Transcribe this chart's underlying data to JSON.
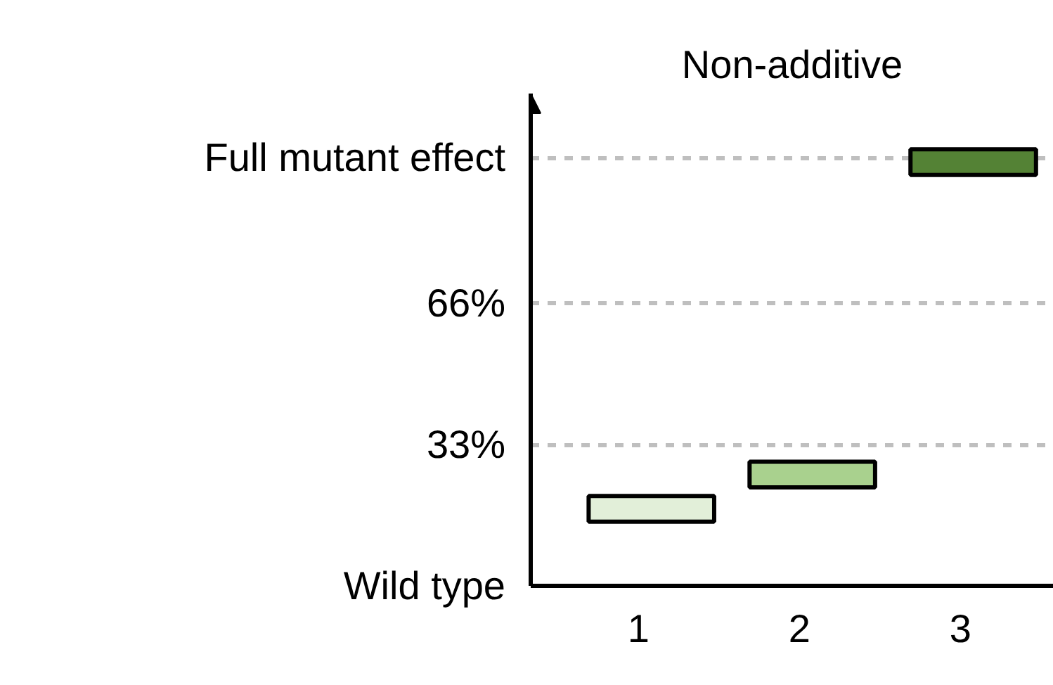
{
  "chart_data": {
    "type": "bar",
    "title": "Non-additive",
    "categories": [
      "1",
      "2",
      "3"
    ],
    "values": [
      6,
      6,
      6
    ],
    "base": [
      15,
      23,
      96
    ],
    "colors": [
      "#e2efd9",
      "#a9d18e",
      "#548235"
    ],
    "ylim": [
      0,
      115
    ],
    "yticks": [
      {
        "value": 0,
        "label": "Wild type"
      },
      {
        "value": 33,
        "label": "33%"
      },
      {
        "value": 66,
        "label": "66%"
      },
      {
        "value": 100,
        "label": "Full mutant effect"
      }
    ],
    "grid": "y"
  }
}
